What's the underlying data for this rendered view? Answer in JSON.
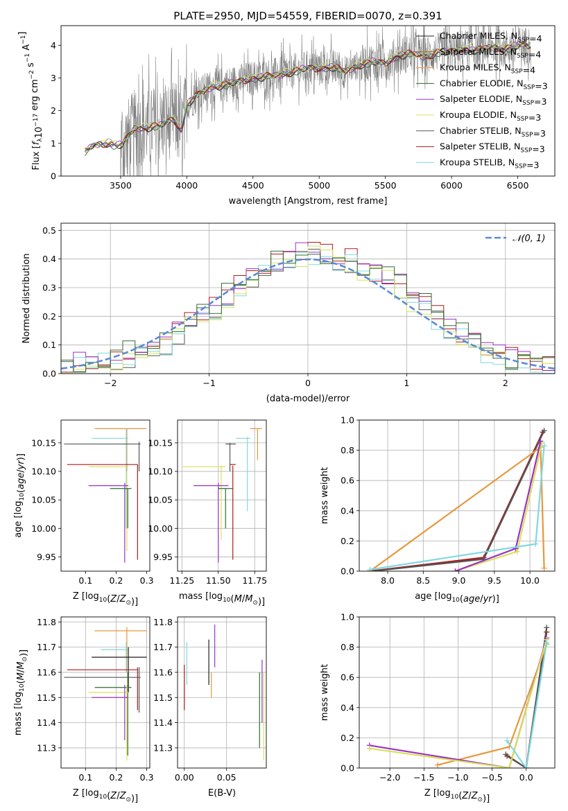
{
  "colors": {
    "Chabrier MILES": "#1f1f1f",
    "Salpeter MILES": "#8b6914",
    "Kroupa MILES": "#e8963a",
    "Chabrier ELODIE": "#2e6e2e",
    "Salpeter ELODIE": "#9b30c8",
    "Kroupa ELODIE": "#d8e05a",
    "Chabrier STELIB": "#555555",
    "Salpeter STELIB": "#b01818",
    "Kroupa STELIB": "#7fd8e0",
    "data": "#808080",
    "gauss": "#5b8bd6",
    "grid": "#b0b0b0"
  },
  "chart_data": [
    {
      "id": "spectrum",
      "type": "line",
      "title": "PLATE=2950, MJD=54559, FIBERID=0070, z=0.391",
      "xlabel": "wavelength [Angstrom, rest frame]",
      "ylabel": "Flux [f_λ 10^-17 erg cm^-2 s^-1 A^-1]",
      "xlim": [
        3050,
        6780
      ],
      "ylim": [
        0,
        4.6
      ],
      "xticks": [
        3500,
        4000,
        4500,
        5000,
        5500,
        6000,
        6500
      ],
      "yticks": [
        0,
        1,
        2,
        3,
        4
      ],
      "grid": false,
      "legend_position": "top-right",
      "legend": [
        {
          "name": "Chabrier MILES",
          "nssp": "4"
        },
        {
          "name": "Salpeter MILES",
          "nssp": "4"
        },
        {
          "name": "Kroupa MILES",
          "nssp": "4"
        },
        {
          "name": "Chabrier ELODIE",
          "nssp": "3"
        },
        {
          "name": "Salpeter ELODIE",
          "nssp": "3"
        },
        {
          "name": "Kroupa ELODIE",
          "nssp": "3"
        },
        {
          "name": "Chabrier STELIB",
          "nssp": "3"
        },
        {
          "name": "Salpeter STELIB",
          "nssp": "3"
        },
        {
          "name": "Kroupa STELIB",
          "nssp": "3"
        }
      ],
      "model_continuum": {
        "x": [
          3230,
          3300,
          3400,
          3480,
          3520,
          3600,
          3700,
          3800,
          3900,
          3960,
          4000,
          4100,
          4200,
          4300,
          4400,
          4500,
          4600,
          4700,
          4800,
          4900,
          5000,
          5100,
          5200,
          5300,
          5400,
          5500,
          5600,
          5700,
          5800,
          5900,
          6000,
          6100,
          6200,
          6300,
          6400,
          6500,
          6600
        ],
        "y": [
          0.75,
          0.95,
          1.0,
          0.95,
          1.0,
          1.45,
          1.5,
          1.55,
          1.75,
          1.4,
          2.2,
          2.55,
          2.75,
          2.8,
          2.9,
          3.0,
          3.05,
          3.1,
          3.2,
          3.3,
          3.3,
          3.35,
          3.2,
          3.4,
          3.5,
          3.45,
          3.7,
          3.75,
          3.65,
          3.8,
          3.8,
          3.9,
          3.85,
          3.95,
          3.9,
          4.0,
          4.0
        ]
      }
    },
    {
      "id": "residuals",
      "type": "line",
      "xlabel": "(data-model)/error",
      "ylabel": "Normed distribution",
      "xlim": [
        -2.5,
        2.5
      ],
      "ylim": [
        0,
        0.525
      ],
      "xticks": [
        -2,
        -1,
        0,
        1,
        2
      ],
      "yticks": [
        0.0,
        0.1,
        0.2,
        0.3,
        0.4,
        0.5
      ],
      "grid": true,
      "legend_position": "top-right",
      "gauss_label": "𝒩(0, 1)",
      "hist_base": [
        0.02,
        0.03,
        0.04,
        0.05,
        0.06,
        0.07,
        0.08,
        0.1,
        0.11,
        0.14,
        0.17,
        0.2,
        0.23,
        0.27,
        0.3,
        0.33,
        0.36,
        0.39,
        0.4,
        0.41,
        0.42,
        0.41,
        0.4,
        0.39,
        0.37,
        0.35,
        0.33,
        0.3,
        0.26,
        0.23,
        0.19,
        0.16,
        0.13,
        0.1,
        0.08,
        0.06,
        0.05,
        0.04,
        0.03,
        0.02
      ]
    },
    {
      "id": "age-vs-z",
      "type": "scatter",
      "xlabel": "Z [log10(Z/Z⊙)]",
      "ylabel": "age  [log10(age/yr)]",
      "xlim": [
        0.02,
        0.31
      ],
      "ylim": [
        9.925,
        10.19
      ],
      "xticks": [
        0.1,
        0.2,
        0.3
      ],
      "yticks": [
        9.95,
        10.0,
        10.05,
        10.1,
        10.15
      ],
      "grid": false,
      "points": [
        {
          "model": "Kroupa MILES",
          "x": 0.235,
          "y": 10.175,
          "xerr": [
            0.13,
            0.3
          ],
          "yerr": [
            10.0,
            10.175
          ]
        },
        {
          "model": "Kroupa STELIB",
          "x": 0.233,
          "y": 10.158,
          "xerr": [
            0.12,
            0.24
          ],
          "yerr": [
            10.0,
            10.175
          ]
        },
        {
          "model": "Chabrier STELIB",
          "x": 0.275,
          "y": 10.148,
          "xerr": [
            0.03,
            0.28
          ],
          "yerr": [
            10.1,
            10.152
          ]
        },
        {
          "model": "Salpeter STELIB",
          "x": 0.27,
          "y": 10.112,
          "xerr": [
            0.04,
            0.27
          ],
          "yerr": [
            9.945,
            10.112
          ]
        },
        {
          "model": "Kroupa ELODIE",
          "x": 0.235,
          "y": 10.108,
          "xerr": [
            0.11,
            0.24
          ],
          "yerr": [
            9.96,
            10.1
          ]
        },
        {
          "model": "Salpeter ELODIE",
          "x": 0.228,
          "y": 10.075,
          "xerr": [
            0.11,
            0.24
          ],
          "yerr": [
            9.94,
            10.08
          ]
        },
        {
          "model": "Chabrier ELODIE",
          "x": 0.238,
          "y": 10.07,
          "xerr": [
            0.18,
            0.25
          ],
          "yerr": [
            10.0,
            10.07
          ]
        }
      ]
    },
    {
      "id": "age-vs-mass",
      "type": "scatter",
      "xlabel": "mass [log10(M/M⊙)]",
      "ylabel": "",
      "xlim": [
        11.22,
        11.83
      ],
      "ylim": [
        9.925,
        10.19
      ],
      "xticks": [
        11.25,
        11.5,
        11.75
      ],
      "yticks": [
        9.95,
        10.0,
        10.05,
        10.1,
        10.15
      ],
      "grid": true,
      "points": [
        {
          "model": "Kroupa MILES",
          "x": 11.77,
          "y": 10.175,
          "xerr": [
            11.72,
            11.8
          ],
          "yerr": [
            10.12,
            10.175
          ]
        },
        {
          "model": "Kroupa STELIB",
          "x": 11.7,
          "y": 10.158,
          "xerr": [
            11.62,
            11.72
          ],
          "yerr": [
            10.03,
            10.16
          ]
        },
        {
          "model": "Chabrier STELIB",
          "x": 11.58,
          "y": 10.148,
          "xerr": [
            11.55,
            11.62
          ],
          "yerr": [
            10.1,
            10.15
          ]
        },
        {
          "model": "Salpeter STELIB",
          "x": 11.6,
          "y": 10.112,
          "xerr": [
            11.58,
            11.62
          ],
          "yerr": [
            9.945,
            10.11
          ]
        },
        {
          "model": "Kroupa ELODIE",
          "x": 11.52,
          "y": 10.108,
          "xerr": [
            11.25,
            11.55
          ],
          "yerr": [
            9.98,
            10.11
          ]
        },
        {
          "model": "Salpeter ELODIE",
          "x": 11.5,
          "y": 10.075,
          "xerr": [
            11.33,
            11.57
          ],
          "yerr": [
            9.94,
            10.08
          ]
        },
        {
          "model": "Chabrier ELODIE",
          "x": 11.55,
          "y": 10.07,
          "xerr": [
            11.5,
            11.6
          ],
          "yerr": [
            10.0,
            10.07
          ]
        }
      ]
    },
    {
      "id": "weight-vs-age",
      "type": "line",
      "xlabel": "age  [log10(age/yr)]",
      "ylabel": "mass weight",
      "xlim": [
        7.6,
        10.35
      ],
      "ylim": [
        0,
        1.0
      ],
      "xticks": [
        8.0,
        8.5,
        9.0,
        9.5,
        10.0
      ],
      "yticks": [
        0.0,
        0.2,
        0.4,
        0.6,
        0.8,
        1.0
      ],
      "grid": true,
      "series": [
        {
          "model": "Salpeter STELIB",
          "x": [
            7.75,
            9.35,
            10.18
          ],
          "y": [
            0.0,
            0.09,
            0.92
          ]
        },
        {
          "model": "Chabrier STELIB",
          "x": [
            7.78,
            9.35,
            10.2
          ],
          "y": [
            0.0,
            0.08,
            0.93
          ]
        },
        {
          "model": "Kroupa MILES",
          "x": [
            7.75,
            10.15,
            10.2
          ],
          "y": [
            0.0,
            0.82,
            0.02
          ]
        },
        {
          "model": "Kroupa ELODIE",
          "x": [
            8.95,
            9.82,
            10.17
          ],
          "y": [
            0.0,
            0.13,
            0.85
          ]
        },
        {
          "model": "Salpeter ELODIE",
          "x": [
            8.95,
            9.8,
            10.15
          ],
          "y": [
            0.0,
            0.15,
            0.86
          ]
        },
        {
          "model": "Kroupa STELIB",
          "x": [
            7.75,
            10.08,
            10.2
          ],
          "y": [
            0.01,
            0.18,
            0.83
          ]
        }
      ]
    },
    {
      "id": "mass-vs-z",
      "type": "scatter",
      "xlabel": "Z [log10(Z/Z⊙)]",
      "ylabel": "mass [log10(M/M⊙)]",
      "xlim": [
        0.02,
        0.31
      ],
      "ylim": [
        11.22,
        11.82
      ],
      "xticks": [
        0.1,
        0.2,
        0.3
      ],
      "yticks": [
        11.3,
        11.4,
        11.5,
        11.6,
        11.7,
        11.8
      ],
      "grid": true,
      "points": [
        {
          "model": "Kroupa MILES",
          "x": 0.235,
          "y": 11.765,
          "xerr": [
            0.13,
            0.3
          ],
          "yerr": [
            11.6,
            11.78
          ]
        },
        {
          "model": "Kroupa STELIB",
          "x": 0.233,
          "y": 11.69,
          "xerr": [
            0.15,
            0.24
          ],
          "yerr": [
            11.6,
            11.72
          ]
        },
        {
          "model": "Chabrier MILES",
          "x": 0.24,
          "y": 11.66,
          "xerr": [
            0.12,
            0.3
          ],
          "yerr": [
            11.52,
            11.7
          ]
        },
        {
          "model": "Salpeter STELIB",
          "x": 0.27,
          "y": 11.61,
          "xerr": [
            0.04,
            0.27
          ],
          "yerr": [
            11.45,
            11.62
          ]
        },
        {
          "model": "Chabrier STELIB",
          "x": 0.275,
          "y": 11.58,
          "xerr": [
            0.03,
            0.28
          ],
          "yerr": [
            11.44,
            11.62
          ]
        },
        {
          "model": "Chabrier ELODIE",
          "x": 0.238,
          "y": 11.54,
          "xerr": [
            0.13,
            0.25
          ],
          "yerr": [
            11.27,
            11.6
          ]
        },
        {
          "model": "Kroupa ELODIE",
          "x": 0.235,
          "y": 11.52,
          "xerr": [
            0.11,
            0.24
          ],
          "yerr": [
            11.25,
            11.55
          ]
        },
        {
          "model": "Salpeter ELODIE",
          "x": 0.228,
          "y": 11.5,
          "xerr": [
            0.12,
            0.24
          ],
          "yerr": [
            11.33,
            11.55
          ]
        }
      ]
    },
    {
      "id": "mass-vs-ebv",
      "type": "scatter",
      "xlabel": "E(B-V)",
      "ylabel": "",
      "xlim": [
        -0.008,
        0.097
      ],
      "ylim": [
        11.22,
        11.82
      ],
      "xticks": [
        0.0,
        0.05
      ],
      "yticks": [
        11.3,
        11.4,
        11.5,
        11.6,
        11.7,
        11.8
      ],
      "grid": true,
      "segments": [
        {
          "model": "Salpeter STELIB",
          "x": 0.0,
          "y": [
            11.45,
            11.63
          ]
        },
        {
          "model": "Kroupa STELIB",
          "x": 0.003,
          "y": [
            11.55,
            11.72
          ]
        },
        {
          "model": "Chabrier MILES",
          "x": 0.029,
          "y": [
            11.55,
            11.73
          ]
        },
        {
          "model": "Kroupa MILES",
          "x": 0.032,
          "y": [
            11.5,
            11.6
          ]
        },
        {
          "model": "Salpeter ELODIE",
          "x": 0.036,
          "y": [
            11.62,
            11.79
          ]
        },
        {
          "model": "Chabrier ELODIE",
          "x": 0.089,
          "y": [
            11.3,
            11.6
          ]
        },
        {
          "model": "Salpeter ELODIE",
          "x": 0.092,
          "y": [
            11.4,
            11.65
          ]
        },
        {
          "model": "Kroupa ELODIE",
          "x": 0.094,
          "y": [
            11.25,
            11.6
          ]
        }
      ]
    },
    {
      "id": "weight-vs-z",
      "type": "line",
      "xlabel": "Z [log10(Z/Z⊙)]",
      "ylabel": "mass weight",
      "xlim": [
        -2.45,
        0.42
      ],
      "ylim": [
        0,
        1.0
      ],
      "xticks": [
        -2.0,
        -1.5,
        -1.0,
        -0.5,
        0.0
      ],
      "yticks": [
        0.0,
        0.2,
        0.4,
        0.6,
        0.8,
        1.0
      ],
      "grid": true,
      "series": [
        {
          "model": "Salpeter STELIB",
          "x": [
            -0.28,
            0.0,
            0.3
          ],
          "y": [
            0.08,
            0.0,
            0.9
          ]
        },
        {
          "model": "Chabrier STELIB",
          "x": [
            -0.3,
            0.0,
            0.3
          ],
          "y": [
            0.09,
            0.0,
            0.93
          ]
        },
        {
          "model": "Kroupa MILES",
          "x": [
            -1.3,
            -0.25,
            0.3
          ],
          "y": [
            0.02,
            0.14,
            0.82
          ]
        },
        {
          "model": "Salpeter ELODIE",
          "x": [
            -2.3,
            -0.25,
            0.3
          ],
          "y": [
            0.15,
            0.0,
            0.86
          ]
        },
        {
          "model": "Kroupa ELODIE",
          "x": [
            -2.3,
            -0.25,
            0.3
          ],
          "y": [
            0.13,
            0.0,
            0.85
          ]
        },
        {
          "model": "Kroupa STELIB",
          "x": [
            -0.28,
            0.0,
            0.3
          ],
          "y": [
            0.18,
            0.0,
            0.83
          ]
        }
      ]
    }
  ]
}
